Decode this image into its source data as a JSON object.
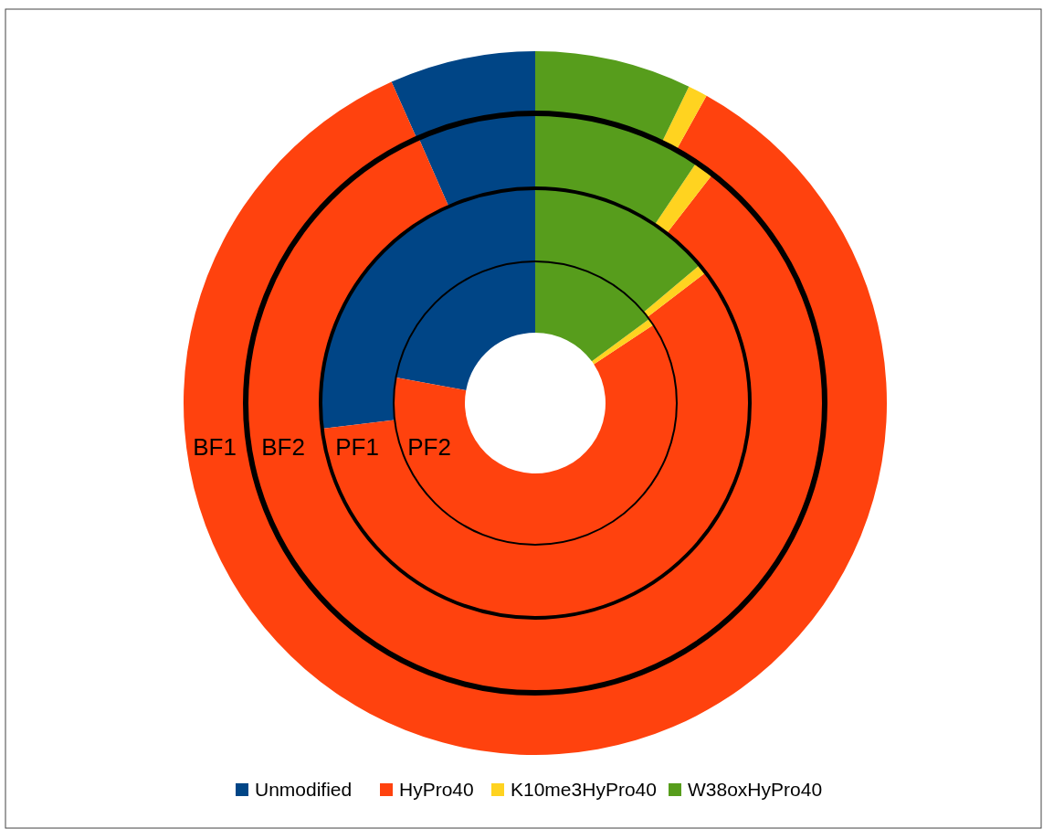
{
  "chart_data": {
    "type": "donut",
    "categories": [
      "Unmodified",
      "HyPro40",
      "K10me3HyPro40",
      "W38oxHyPro40"
    ],
    "colors": [
      "#004586",
      "#ff420e",
      "#ffd320",
      "#579d1c"
    ],
    "legend": "bottom",
    "series": [
      {
        "name": "BF1",
        "values": [
          6.7,
          85.2,
          0.9,
          7.2
        ]
      },
      {
        "name": "BF2",
        "values": [
          6.6,
          82.9,
          1.1,
          9.4
        ]
      },
      {
        "name": "PF1",
        "values": [
          26.9,
          58.5,
          0.7,
          13.9
        ]
      },
      {
        "name": "PF2",
        "values": [
          22.1,
          62.2,
          0.8,
          14.9
        ]
      }
    ]
  }
}
